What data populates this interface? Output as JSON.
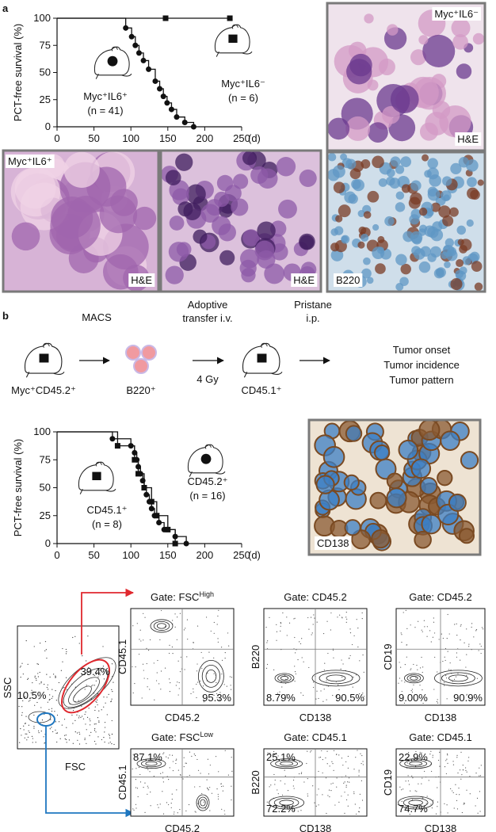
{
  "panel_labels": [
    "a",
    "b"
  ],
  "chart_data": [
    {
      "type": "step",
      "ylabel": "PCT-free survival (%)",
      "x_unit": "(d)",
      "xlim": [
        0,
        250
      ],
      "ylim": [
        0,
        100
      ],
      "xticks": [
        0,
        50,
        100,
        150,
        200,
        250
      ],
      "yticks": [
        0,
        25,
        50,
        75,
        100
      ],
      "series": [
        {
          "name": "Myc⁺IL6⁺",
          "n": "(n = 41)",
          "marker": "circle",
          "color": "#111111",
          "x": [
            93,
            101,
            106,
            111,
            117,
            124,
            133,
            139,
            144,
            149,
            155,
            162,
            173,
            185
          ],
          "values": [
            91,
            83,
            75,
            68,
            61,
            53,
            42,
            35,
            28,
            22,
            16,
            9,
            4,
            0
          ]
        },
        {
          "name": "Myc⁺IL6⁻",
          "n": "(n = 6)",
          "marker": "square",
          "color": "#111111",
          "x": [
            147,
            234
          ],
          "values": [
            100,
            100
          ]
        }
      ]
    },
    {
      "type": "step",
      "ylabel": "PCT-free survival (%)",
      "x_unit": "(d)",
      "xlim": [
        0,
        250
      ],
      "ylim": [
        0,
        100
      ],
      "xticks": [
        0,
        50,
        100,
        150,
        200,
        250
      ],
      "yticks": [
        0,
        25,
        50,
        75,
        100
      ],
      "series": [
        {
          "name": "CD45.1⁺",
          "n": "(n = 8)",
          "marker": "square",
          "color": "#111111",
          "x": [
            82,
            105,
            110,
            118,
            128,
            135,
            150,
            160
          ],
          "values": [
            87.5,
            75,
            62.5,
            50,
            37.5,
            25,
            12.5,
            0
          ]
        },
        {
          "name": "CD45.2⁺",
          "n": "(n = 16)",
          "marker": "circle",
          "color": "#111111",
          "x": [
            75,
            100,
            105,
            108,
            110,
            113,
            116,
            118,
            121,
            125,
            128,
            132,
            138,
            145,
            160,
            175
          ],
          "values": [
            93.8,
            87.5,
            81.3,
            75,
            68.8,
            62.5,
            56.3,
            50,
            43.8,
            37.5,
            31.3,
            25,
            18.8,
            12.5,
            6.3,
            0
          ]
        }
      ]
    }
  ],
  "micrographs": [
    {
      "label": "Myc⁺IL6⁻",
      "stain": "H&E"
    },
    {
      "stain": "B220"
    },
    {
      "label": "Myc⁺IL6⁺",
      "stain": "H&E"
    },
    {
      "stain": "H&E"
    },
    {
      "stain": "CD138"
    }
  ],
  "schematic": {
    "donor": "Myc⁺CD45.2⁺",
    "step1": "MACS",
    "cells": "B220⁺",
    "step2": [
      "Adoptive",
      "transfer i.v."
    ],
    "dose": "4 Gy",
    "recipient": "CD45.1⁺",
    "step3": [
      "Pristane",
      "i.p."
    ],
    "readouts": [
      "Tumor onset",
      "Tumor incidence",
      "Tumor pattern"
    ]
  },
  "flow": {
    "main": {
      "ylabel": "SSC",
      "xlabel": "FSC",
      "gates": [
        {
          "label": "39.4%",
          "color": "#e0282e"
        },
        {
          "label": "10.5%",
          "color": "#1f77c0"
        }
      ]
    },
    "plots": [
      {
        "gate": "Gate: FSC",
        "gate_sup": "High",
        "ylabel": "CD45.1",
        "xlabel": "CD45.2",
        "color": "#e0282e",
        "percents": [
          "95.3%"
        ]
      },
      {
        "gate": "Gate: CD45.2",
        "ylabel": "B220",
        "xlabel": "CD138",
        "color": "#e0282e",
        "percents": [
          "8.79%",
          "90.5%"
        ]
      },
      {
        "gate": "Gate: CD45.2",
        "ylabel": "CD19",
        "xlabel": "CD138",
        "color": "#e0282e",
        "percents": [
          "9.00%",
          "90.9%"
        ]
      },
      {
        "gate": "Gate: FSC",
        "gate_sup": "Low",
        "ylabel": "CD45.1",
        "xlabel": "CD45.2",
        "color": "#1f77c0",
        "percents": [
          "87.1%"
        ]
      },
      {
        "gate": "Gate: CD45.1",
        "ylabel": "B220",
        "xlabel": "CD138",
        "color": "#1f77c0",
        "percents": [
          "25.1%",
          "72.2%"
        ]
      },
      {
        "gate": "Gate: CD45.1",
        "ylabel": "CD19",
        "xlabel": "CD138",
        "color": "#1f77c0",
        "percents": [
          "22.9%",
          "74.7%"
        ]
      }
    ]
  }
}
